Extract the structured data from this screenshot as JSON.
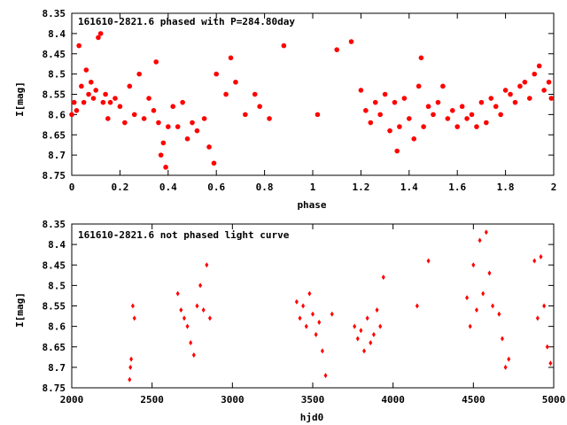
{
  "chart_data": [
    {
      "type": "scatter",
      "title": "161610-2821.6 phased with P=284.80day",
      "xlabel": "phase",
      "ylabel": "I[mag]",
      "xlim": [
        0,
        2
      ],
      "ylim": [
        8.35,
        8.75
      ],
      "y_inverted": true,
      "grid": false,
      "marker_color": "#ff0000",
      "x_ticks": [
        "0",
        "0.2",
        "0.4",
        "0.6",
        "0.8",
        "1",
        "1.2",
        "1.4",
        "1.6",
        "1.8",
        "2"
      ],
      "y_ticks": [
        "8.35",
        "8.4",
        "8.45",
        "8.5",
        "8.55",
        "8.6",
        "8.65",
        "8.7",
        "8.75"
      ],
      "x": [
        0.0,
        0.01,
        0.02,
        0.03,
        0.04,
        0.05,
        0.06,
        0.07,
        0.08,
        0.09,
        0.1,
        0.11,
        0.12,
        0.13,
        0.14,
        0.15,
        0.16,
        0.18,
        0.2,
        0.22,
        0.24,
        0.26,
        0.28,
        0.3,
        0.32,
        0.34,
        0.35,
        0.36,
        0.37,
        0.38,
        0.39,
        0.4,
        0.42,
        0.44,
        0.46,
        0.48,
        0.5,
        0.52,
        0.55,
        0.57,
        0.59,
        0.6,
        0.64,
        0.66,
        0.68,
        0.72,
        0.76,
        0.78,
        0.82,
        0.88,
        1.02,
        1.1,
        1.16,
        1.2,
        1.22,
        1.24,
        1.26,
        1.28,
        1.3,
        1.32,
        1.34,
        1.35,
        1.36,
        1.38,
        1.4,
        1.42,
        1.44,
        1.45,
        1.46,
        1.48,
        1.5,
        1.52,
        1.54,
        1.56,
        1.58,
        1.6,
        1.62,
        1.64,
        1.66,
        1.68,
        1.7,
        1.72,
        1.74,
        1.76,
        1.78,
        1.8,
        1.82,
        1.84,
        1.86,
        1.88,
        1.9,
        1.92,
        1.94,
        1.96,
        1.98,
        1.99
      ],
      "y": [
        8.6,
        8.57,
        8.59,
        8.43,
        8.53,
        8.57,
        8.49,
        8.55,
        8.52,
        8.56,
        8.54,
        8.41,
        8.4,
        8.57,
        8.55,
        8.61,
        8.57,
        8.56,
        8.58,
        8.62,
        8.53,
        8.6,
        8.5,
        8.61,
        8.56,
        8.59,
        8.47,
        8.62,
        8.7,
        8.67,
        8.73,
        8.63,
        8.58,
        8.63,
        8.57,
        8.66,
        8.62,
        8.64,
        8.61,
        8.68,
        8.72,
        8.5,
        8.55,
        8.46,
        8.52,
        8.6,
        8.55,
        8.58,
        8.61,
        8.43,
        8.6,
        8.44,
        8.42,
        8.54,
        8.59,
        8.62,
        8.57,
        8.6,
        8.55,
        8.64,
        8.57,
        8.69,
        8.63,
        8.56,
        8.61,
        8.66,
        8.53,
        8.46,
        8.63,
        8.58,
        8.6,
        8.57,
        8.53,
        8.61,
        8.59,
        8.63,
        8.58,
        8.61,
        8.6,
        8.63,
        8.57,
        8.62,
        8.56,
        8.58,
        8.6,
        8.54,
        8.55,
        8.57,
        8.53,
        8.52,
        8.56,
        8.5,
        8.48,
        8.54,
        8.52,
        8.56
      ]
    },
    {
      "type": "scatter",
      "title": "161610-2821.6 not phased light curve",
      "xlabel": "hjd0",
      "ylabel": "I[mag]",
      "xlim": [
        2000,
        5000
      ],
      "ylim": [
        8.35,
        8.75
      ],
      "y_inverted": true,
      "grid": false,
      "marker_color": "#ff0000",
      "x_ticks": [
        "2000",
        "2500",
        "3000",
        "3500",
        "4000",
        "4500",
        "5000"
      ],
      "y_ticks": [
        "8.35",
        "8.4",
        "8.45",
        "8.5",
        "8.55",
        "8.6",
        "8.65",
        "8.7",
        "8.75"
      ],
      "x": [
        2360,
        2365,
        2370,
        2380,
        2390,
        2660,
        2680,
        2700,
        2720,
        2740,
        2760,
        2780,
        2800,
        2820,
        2840,
        2860,
        3400,
        3420,
        3440,
        3460,
        3480,
        3500,
        3520,
        3540,
        3560,
        3580,
        3620,
        3760,
        3780,
        3800,
        3820,
        3840,
        3860,
        3880,
        3900,
        3920,
        3940,
        4150,
        4220,
        4460,
        4480,
        4500,
        4520,
        4540,
        4560,
        4580,
        4600,
        4620,
        4660,
        4680,
        4700,
        4720,
        4880,
        4900,
        4920,
        4940,
        4960,
        4980
      ],
      "y": [
        8.73,
        8.7,
        8.68,
        8.55,
        8.58,
        8.52,
        8.56,
        8.58,
        8.6,
        8.64,
        8.67,
        8.55,
        8.5,
        8.56,
        8.45,
        8.58,
        8.54,
        8.58,
        8.55,
        8.6,
        8.52,
        8.57,
        8.62,
        8.59,
        8.66,
        8.72,
        8.57,
        8.6,
        8.63,
        8.61,
        8.66,
        8.58,
        8.64,
        8.62,
        8.56,
        8.6,
        8.48,
        8.55,
        8.44,
        8.53,
        8.6,
        8.45,
        8.56,
        8.39,
        8.52,
        8.37,
        8.47,
        8.55,
        8.57,
        8.63,
        8.7,
        8.68,
        8.44,
        8.58,
        8.43,
        8.55,
        8.65,
        8.69
      ]
    }
  ]
}
